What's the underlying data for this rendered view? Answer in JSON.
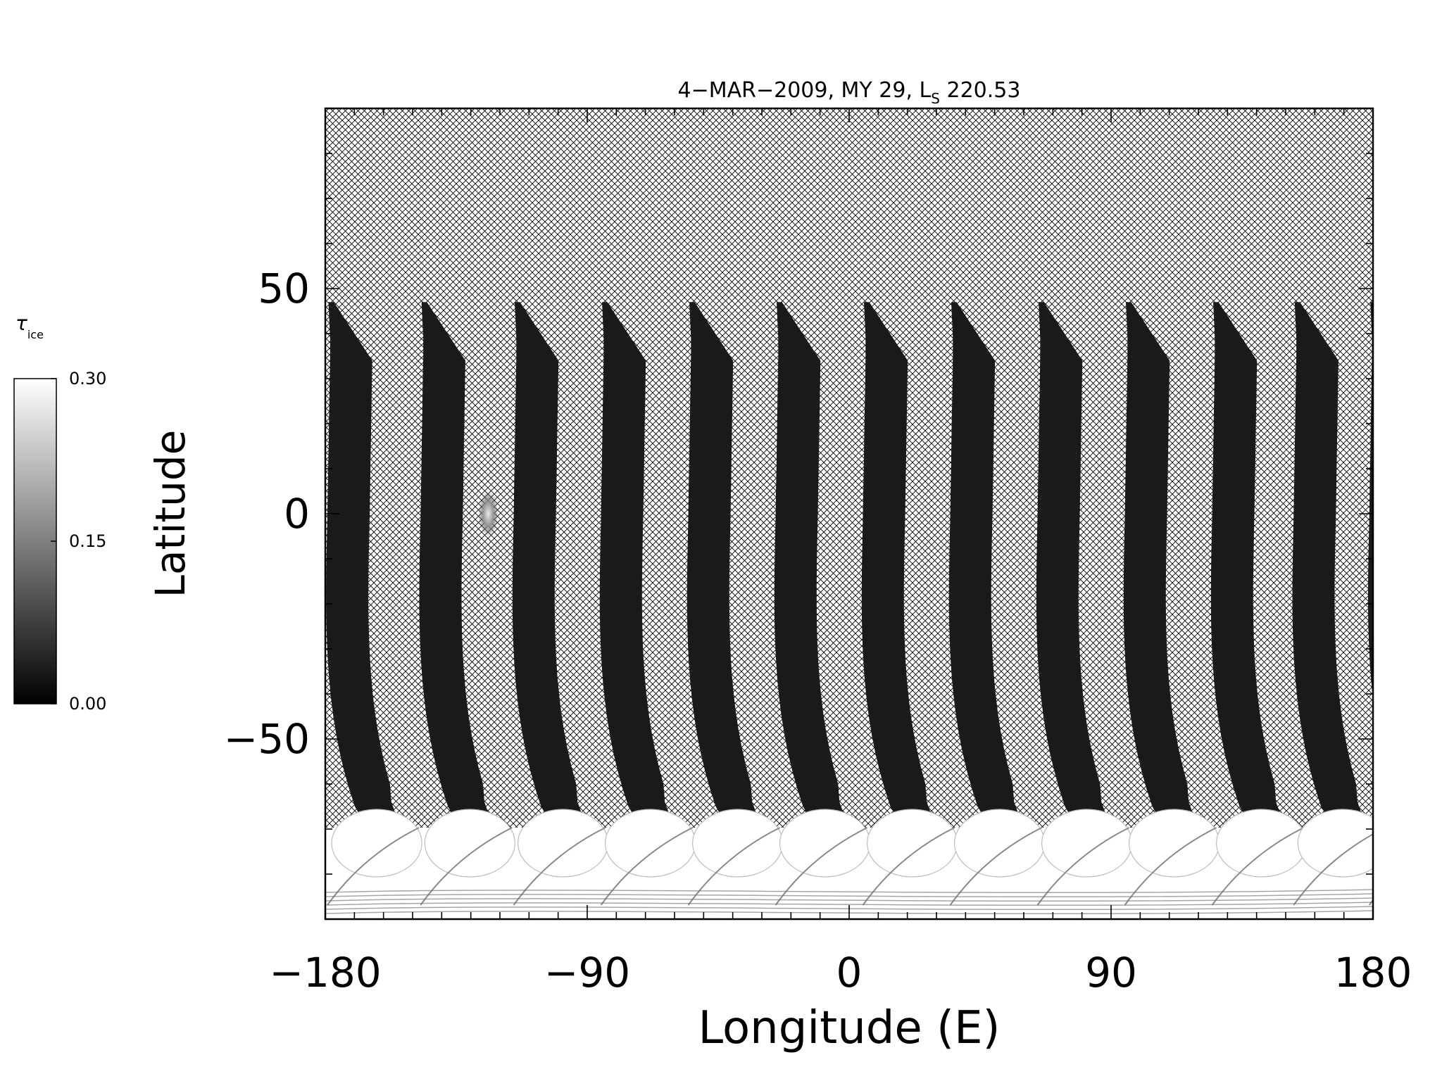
{
  "chart_data": {
    "type": "heatmap",
    "title_prefix": "4−MAR−2009, MY 29,  L",
    "title_subscript": "S",
    "title_suffix": " 220.53",
    "xlabel": "Longitude (E)",
    "ylabel": "Latitude",
    "xlim": [
      -180,
      180
    ],
    "ylim": [
      -90,
      90
    ],
    "xticks": [
      -180,
      -90,
      0,
      90,
      180
    ],
    "xtick_labels": [
      "−180",
      "−90",
      "0",
      "90",
      "180"
    ],
    "yticks": [
      -50,
      0,
      50
    ],
    "ytick_labels": [
      "−50",
      "0",
      "50"
    ],
    "grid": false,
    "no_data_fill": "crosshatch",
    "colorbar": {
      "label_symbol": "τ",
      "label_subscript": "ice",
      "colormap": "grayscale",
      "min": 0.0,
      "max": 0.3,
      "ticks": [
        0.0,
        0.15,
        0.3
      ],
      "tick_labels": [
        "0.00",
        "0.15",
        "0.30"
      ],
      "color_min": "#000000",
      "color_max": "#ffffff"
    },
    "swaths": {
      "count": 13,
      "equator_longitudes": [
        -172,
        -140,
        -108,
        -78,
        -48,
        -18,
        12,
        42,
        72,
        102,
        132,
        160,
        186
      ],
      "top_latitude": 47,
      "bottom_latitude": -68,
      "typical_tau_ice": 0.03
    },
    "south_polar_cap": {
      "latitude_top": -65,
      "latitude_bottom": -90,
      "tau_ice": 0.3
    },
    "bright_spot": {
      "longitude": -124,
      "latitude": 0,
      "tau_ice": 0.22
    }
  }
}
